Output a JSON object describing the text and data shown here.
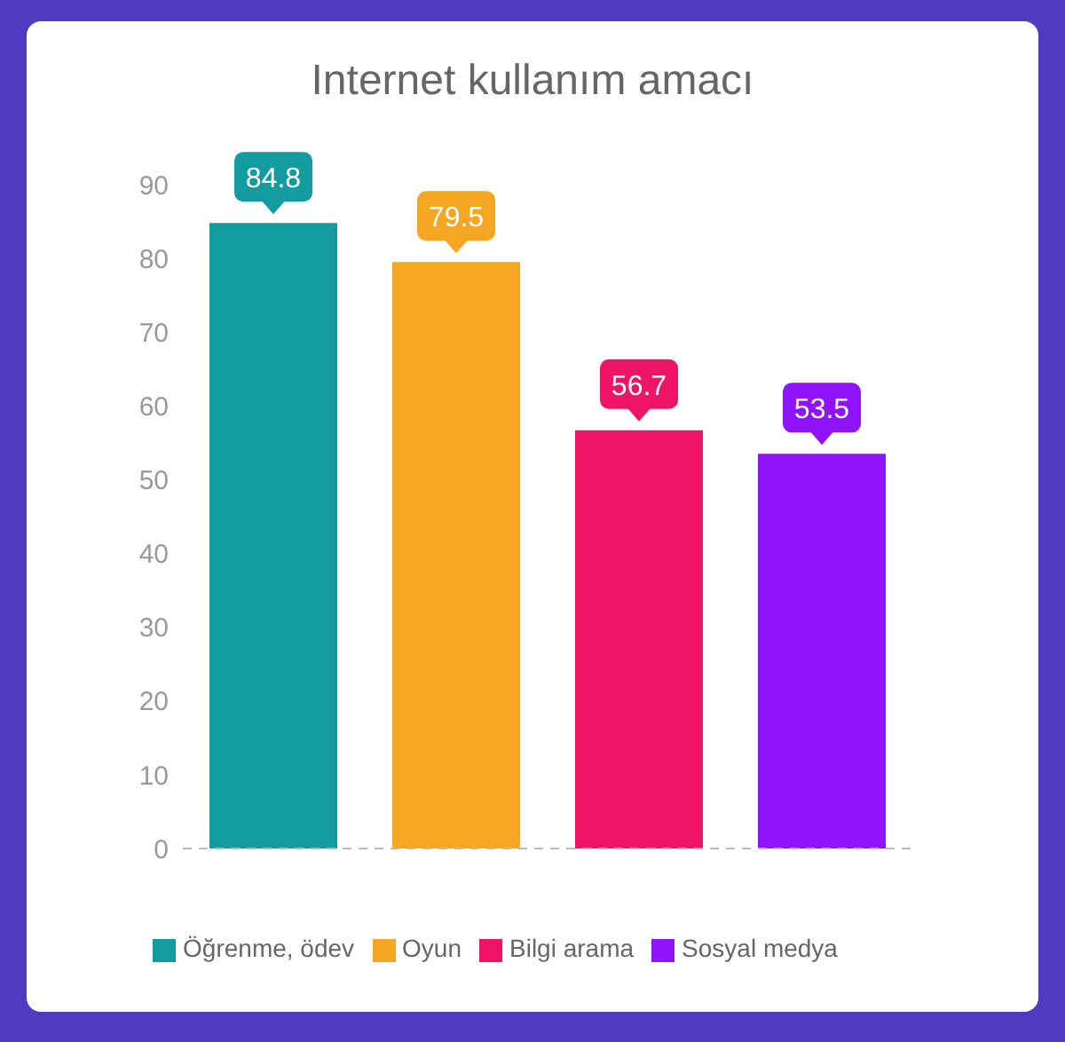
{
  "chart_data": {
    "type": "bar",
    "title": "Internet kullanım amacı",
    "categories": [
      null
    ],
    "series": [
      {
        "name": "Öğrenme, ödev",
        "color": "#139ca0",
        "values": [
          84.8
        ]
      },
      {
        "name": "Oyun",
        "color": "#f5a623",
        "values": [
          79.5
        ]
      },
      {
        "name": "Bilgi arama",
        "color": "#ee1566",
        "values": [
          56.7
        ]
      },
      {
        "name": "Sosyal medya",
        "color": "#9013fe",
        "values": [
          53.5
        ]
      }
    ],
    "ylim": [
      0,
      90
    ],
    "yticks": [
      0,
      10,
      20,
      30,
      40,
      50,
      60,
      70,
      80,
      90
    ],
    "legend": "bottom",
    "data_labels": true,
    "tick_labels": "y"
  }
}
